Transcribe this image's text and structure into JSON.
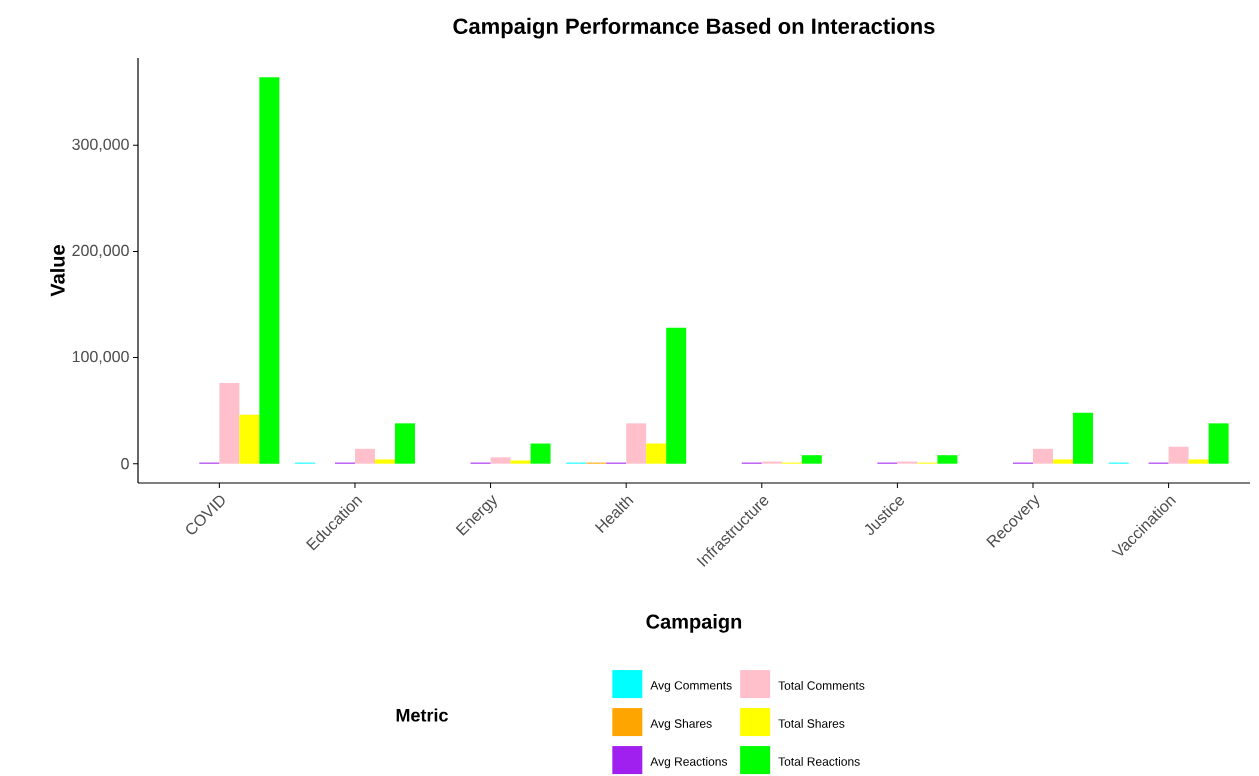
{
  "chart_data": {
    "type": "bar",
    "title": "Campaign Performance Based on Interactions",
    "xlabel": "Campaign",
    "ylabel": "Value",
    "legend_title": "Metric",
    "categories": [
      "COVID",
      "Education",
      "Energy",
      "Health",
      "Infrastructure",
      "Justice",
      "Recovery",
      "Vaccination"
    ],
    "series": [
      {
        "name": "Avg Comments",
        "color": "#00ffff",
        "values": [
          null,
          1000,
          null,
          1000,
          null,
          null,
          null,
          1000
        ]
      },
      {
        "name": "Avg Shares",
        "color": "#ffa500",
        "values": [
          null,
          null,
          null,
          1000,
          null,
          null,
          null,
          null
        ]
      },
      {
        "name": "Avg Reactions",
        "color": "#a020f0",
        "values": [
          1000,
          1000,
          1000,
          1000,
          1000,
          1000,
          1000,
          1000
        ]
      },
      {
        "name": "Total Comments",
        "color": "#ffc0cb",
        "values": [
          76000,
          14000,
          6000,
          38000,
          2000,
          2000,
          14000,
          16000
        ]
      },
      {
        "name": "Total Shares",
        "color": "#ffff00",
        "values": [
          46000,
          4000,
          3000,
          19000,
          1000,
          1000,
          4000,
          4000
        ]
      },
      {
        "name": "Total Reactions",
        "color": "#00ff00",
        "values": [
          364000,
          38000,
          19000,
          128000,
          8000,
          8000,
          48000,
          38000
        ]
      }
    ],
    "ylim": [
      -18200,
      382200
    ],
    "yticks": [
      0,
      {
        "value": 100000,
        "label": "100,000"
      },
      {
        "value": 200000,
        "label": "200,000"
      },
      {
        "value": 300000,
        "label": "300,000"
      }
    ],
    "grid": false,
    "legend": "bottom"
  }
}
